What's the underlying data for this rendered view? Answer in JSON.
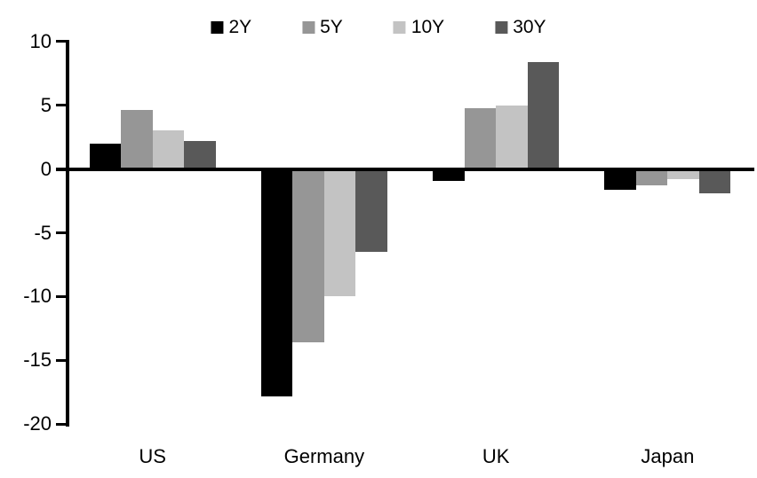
{
  "chart_data": {
    "type": "bar",
    "title": "",
    "xlabel": "",
    "ylabel": "",
    "categories": [
      "US",
      "Germany",
      "UK",
      "Japan"
    ],
    "series": [
      {
        "name": "2Y",
        "color": "#000000",
        "values": [
          2.0,
          -17.8,
          -0.9,
          -1.6
        ]
      },
      {
        "name": "5Y",
        "color": "#969696",
        "values": [
          4.6,
          -13.6,
          4.8,
          -1.3
        ]
      },
      {
        "name": "10Y",
        "color": "#c3c3c3",
        "values": [
          3.0,
          -10.0,
          5.0,
          -0.8
        ]
      },
      {
        "name": "30Y",
        "color": "#595959",
        "values": [
          2.2,
          -6.5,
          8.4,
          -1.9
        ]
      }
    ],
    "ylim": [
      -20,
      10
    ],
    "yticks": [
      10,
      5,
      0,
      -5,
      -10,
      -15,
      -20
    ],
    "legend_position": "top",
    "grid": false,
    "axis_color": "#000000",
    "background_color": "#ffffff"
  }
}
